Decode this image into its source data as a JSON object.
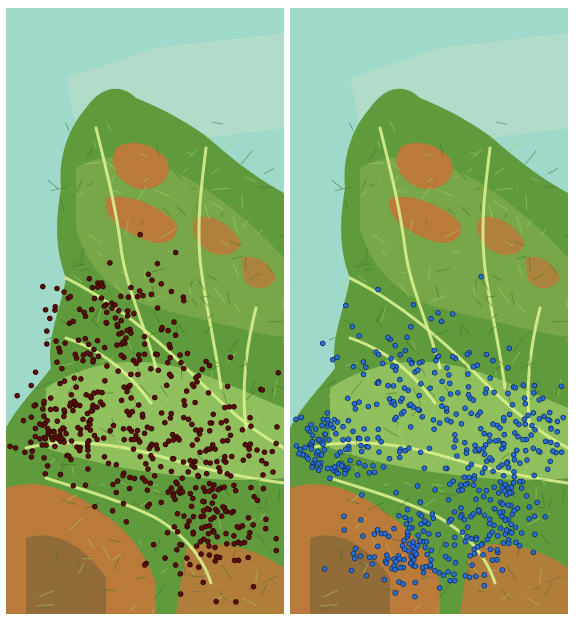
{
  "figure": {
    "panels": [
      {
        "id": "left",
        "point_color": "#5a0f0a",
        "point_stroke": "#2a0505",
        "point_count": 520
      },
      {
        "id": "right",
        "point_color": "#2a6fd0",
        "point_stroke": "#0d2a66",
        "point_count": 560
      }
    ],
    "colors": {
      "water": "#9fd9c9",
      "lowland": "#b8e07a",
      "valley": "#d9f08e",
      "forest": "#5f9a3c",
      "upland": "#7aa84a",
      "highland": "#b97a3a",
      "peak": "#8a6a3a"
    }
  }
}
